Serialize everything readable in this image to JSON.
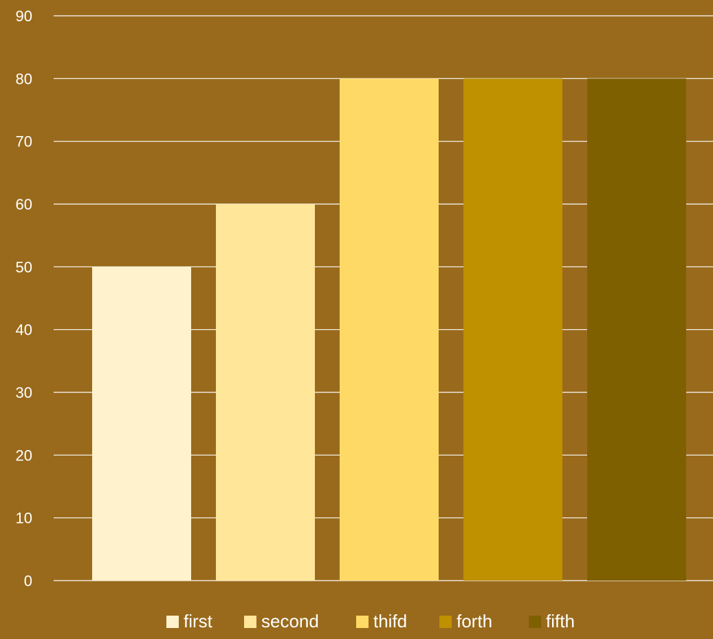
{
  "colors": {
    "background": "#996a1c",
    "gridline": "#ffffff",
    "text": "#ffffff"
  },
  "chart_data": {
    "type": "bar",
    "title": "",
    "xlabel": "",
    "ylabel": "",
    "ylim": [
      0,
      90
    ],
    "yticks": [
      0,
      10,
      20,
      30,
      40,
      50,
      60,
      70,
      80,
      90
    ],
    "grid": true,
    "legend_position": "bottom",
    "series": [
      {
        "name": "first",
        "value": 50,
        "color": "#fff2cc"
      },
      {
        "name": "second",
        "value": 60,
        "color": "#ffe699"
      },
      {
        "name": "thifd",
        "value": 80,
        "color": "#ffd966"
      },
      {
        "name": "forth",
        "value": 80,
        "color": "#bf9000"
      },
      {
        "name": "fifth",
        "value": 80,
        "color": "#7f6000"
      }
    ]
  }
}
